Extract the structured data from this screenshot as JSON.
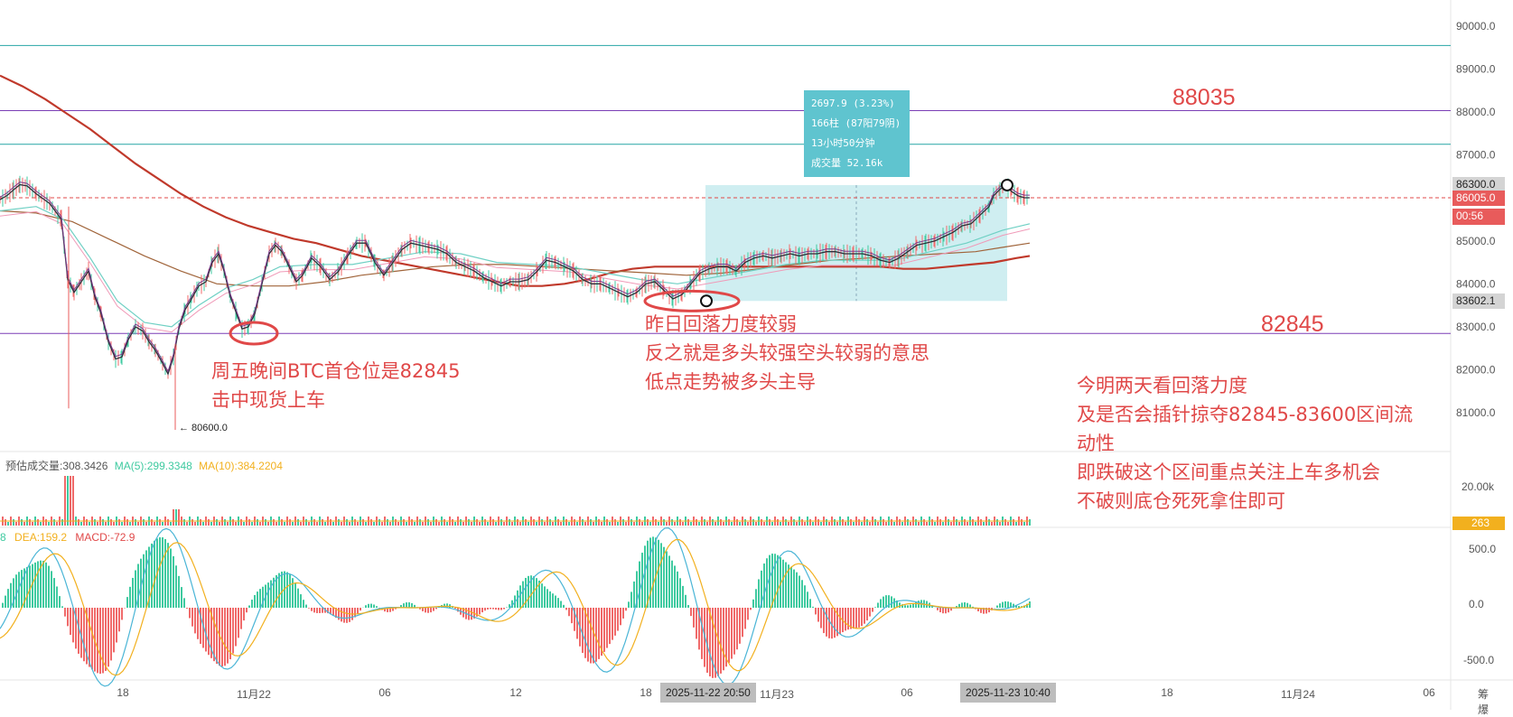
{
  "chart_data": {
    "type": "line",
    "price_axis": {
      "ticks": [
        "90000.0",
        "89000.0",
        "88000.0",
        "87000.0",
        "86000.0",
        "85000.0",
        "84000.0",
        "83000.0",
        "82000.0",
        "81000.0"
      ],
      "ylim": [
        80200,
        90600
      ]
    },
    "volume_axis": {
      "ticks": [
        "20.00k"
      ]
    },
    "macd_axis": {
      "ticks": [
        "500.0",
        "0.0",
        "-500.0"
      ]
    },
    "x_ticks": [
      "18",
      "11月22",
      "06",
      "12",
      "18",
      "11月23",
      "06",
      "18",
      "11月24",
      "06"
    ],
    "x_highlights": [
      "2025-11-22 20:50",
      "2025-11-23 10:40"
    ],
    "axis_corner": "筹 爆",
    "horizontal_levels": [
      {
        "price": 89550,
        "color": "#26a6a6",
        "label": ""
      },
      {
        "price": 88035,
        "color": "#7b3fb5",
        "label": "88035"
      },
      {
        "price": 87250,
        "color": "#26a6a6",
        "label": ""
      },
      {
        "price": 86005,
        "color": "#e04848",
        "dashed": true,
        "label": ""
      },
      {
        "price": 82845,
        "color": "#7b3fb5",
        "label": "82845"
      }
    ],
    "price_badges": [
      {
        "text": "86300.0",
        "bg": "#d4d4d4",
        "fg": "#222222"
      },
      {
        "text": "86005.0",
        "bg": "#e85b5b",
        "fg": "#ffffff"
      },
      {
        "text": "00:56",
        "bg": "#e85b5b",
        "fg": "#ffffff"
      },
      {
        "text": "83602.1",
        "bg": "#d4d4d4",
        "fg": "#222222"
      }
    ],
    "volume_badge": {
      "text": "263",
      "bg": "#f2b01e",
      "fg": "#ffffff"
    },
    "low_marker": "← 80600.0",
    "price_series": [
      [
        0,
        85960
      ],
      [
        8,
        86060
      ],
      [
        15,
        86190
      ],
      [
        22,
        86310
      ],
      [
        30,
        86280
      ],
      [
        40,
        86100
      ],
      [
        55,
        85870
      ],
      [
        68,
        85500
      ],
      [
        75,
        84100
      ],
      [
        82,
        83800
      ],
      [
        90,
        84050
      ],
      [
        98,
        84300
      ],
      [
        105,
        83700
      ],
      [
        112,
        83300
      ],
      [
        120,
        82650
      ],
      [
        128,
        82250
      ],
      [
        135,
        82300
      ],
      [
        142,
        82700
      ],
      [
        150,
        83000
      ],
      [
        158,
        82900
      ],
      [
        165,
        82650
      ],
      [
        172,
        82450
      ],
      [
        180,
        82150
      ],
      [
        186,
        81900
      ],
      [
        192,
        82300
      ],
      [
        198,
        82950
      ],
      [
        205,
        83400
      ],
      [
        212,
        83650
      ],
      [
        220,
        83950
      ],
      [
        228,
        84050
      ],
      [
        235,
        84500
      ],
      [
        242,
        84700
      ],
      [
        248,
        84300
      ],
      [
        255,
        83700
      ],
      [
        262,
        83300
      ],
      [
        268,
        82950
      ],
      [
        275,
        83000
      ],
      [
        282,
        83300
      ],
      [
        290,
        84000
      ],
      [
        298,
        84700
      ],
      [
        305,
        84900
      ],
      [
        312,
        84750
      ],
      [
        320,
        84400
      ],
      [
        328,
        84050
      ],
      [
        335,
        84200
      ],
      [
        345,
        84600
      ],
      [
        355,
        84400
      ],
      [
        365,
        84100
      ],
      [
        375,
        84300
      ],
      [
        385,
        84650
      ],
      [
        395,
        84950
      ],
      [
        405,
        84950
      ],
      [
        415,
        84500
      ],
      [
        425,
        84200
      ],
      [
        435,
        84500
      ],
      [
        445,
        84800
      ],
      [
        455,
        84950
      ],
      [
        465,
        84900
      ],
      [
        475,
        84850
      ],
      [
        485,
        84800
      ],
      [
        495,
        84700
      ],
      [
        505,
        84500
      ],
      [
        515,
        84400
      ],
      [
        525,
        84300
      ],
      [
        535,
        84150
      ],
      [
        545,
        84050
      ],
      [
        555,
        83950
      ],
      [
        565,
        84050
      ],
      [
        575,
        84050
      ],
      [
        585,
        84100
      ],
      [
        595,
        84300
      ],
      [
        605,
        84550
      ],
      [
        615,
        84500
      ],
      [
        625,
        84400
      ],
      [
        635,
        84300
      ],
      [
        645,
        84100
      ],
      [
        655,
        84000
      ],
      [
        665,
        84000
      ],
      [
        675,
        83900
      ],
      [
        685,
        83800
      ],
      [
        695,
        83700
      ],
      [
        705,
        83800
      ],
      [
        715,
        84000
      ],
      [
        725,
        84050
      ],
      [
        735,
        83850
      ],
      [
        745,
        83650
      ],
      [
        755,
        83750
      ],
      [
        765,
        84000
      ],
      [
        775,
        84250
      ],
      [
        785,
        84350
      ],
      [
        795,
        84400
      ],
      [
        805,
        84400
      ],
      [
        815,
        84300
      ],
      [
        825,
        84500
      ],
      [
        835,
        84600
      ],
      [
        845,
        84650
      ],
      [
        855,
        84600
      ],
      [
        865,
        84650
      ],
      [
        875,
        84700
      ],
      [
        885,
        84650
      ],
      [
        895,
        84700
      ],
      [
        905,
        84700
      ],
      [
        915,
        84750
      ],
      [
        925,
        84750
      ],
      [
        935,
        84700
      ],
      [
        945,
        84700
      ],
      [
        955,
        84700
      ],
      [
        965,
        84650
      ],
      [
        975,
        84550
      ],
      [
        985,
        84500
      ],
      [
        995,
        84600
      ],
      [
        1005,
        84750
      ],
      [
        1015,
        84900
      ],
      [
        1025,
        84950
      ],
      [
        1035,
        85000
      ],
      [
        1045,
        85100
      ],
      [
        1055,
        85200
      ],
      [
        1065,
        85350
      ],
      [
        1075,
        85400
      ],
      [
        1085,
        85600
      ],
      [
        1095,
        85800
      ],
      [
        1100,
        86050
      ],
      [
        1107,
        86200
      ],
      [
        1113,
        86300
      ],
      [
        1120,
        86150
      ],
      [
        1127,
        86050
      ],
      [
        1134,
        86005
      ],
      [
        1140,
        86005
      ]
    ],
    "ma_slow": [
      [
        0,
        88850
      ],
      [
        25,
        88600
      ],
      [
        50,
        88300
      ],
      [
        75,
        87950
      ],
      [
        100,
        87600
      ],
      [
        125,
        87200
      ],
      [
        150,
        86800
      ],
      [
        175,
        86450
      ],
      [
        200,
        86100
      ],
      [
        225,
        85800
      ],
      [
        250,
        85550
      ],
      [
        275,
        85350
      ],
      [
        300,
        85200
      ],
      [
        325,
        85050
      ],
      [
        350,
        84950
      ],
      [
        375,
        84800
      ],
      [
        400,
        84650
      ],
      [
        425,
        84550
      ],
      [
        450,
        84450
      ],
      [
        475,
        84350
      ],
      [
        500,
        84250
      ],
      [
        525,
        84150
      ],
      [
        550,
        84050
      ],
      [
        575,
        83950
      ],
      [
        600,
        83950
      ],
      [
        625,
        84000
      ],
      [
        650,
        84100
      ],
      [
        675,
        84250
      ],
      [
        700,
        84350
      ],
      [
        725,
        84400
      ],
      [
        750,
        84400
      ],
      [
        775,
        84400
      ],
      [
        800,
        84400
      ],
      [
        825,
        84400
      ],
      [
        850,
        84400
      ],
      [
        875,
        84400
      ],
      [
        900,
        84400
      ],
      [
        925,
        84400
      ],
      [
        950,
        84400
      ],
      [
        975,
        84400
      ],
      [
        1000,
        84350
      ],
      [
        1025,
        84350
      ],
      [
        1050,
        84400
      ],
      [
        1075,
        84450
      ],
      [
        1100,
        84500
      ],
      [
        1125,
        84600
      ],
      [
        1140,
        84650
      ]
    ],
    "ma_mid": [
      [
        0,
        85700
      ],
      [
        40,
        85650
      ],
      [
        80,
        85450
      ],
      [
        120,
        85050
      ],
      [
        160,
        84650
      ],
      [
        200,
        84300
      ],
      [
        240,
        84000
      ],
      [
        280,
        83950
      ],
      [
        320,
        83950
      ],
      [
        360,
        84050
      ],
      [
        400,
        84200
      ],
      [
        440,
        84300
      ],
      [
        480,
        84400
      ],
      [
        520,
        84450
      ],
      [
        560,
        84450
      ],
      [
        600,
        84400
      ],
      [
        640,
        84350
      ],
      [
        680,
        84300
      ],
      [
        720,
        84250
      ],
      [
        760,
        84200
      ],
      [
        800,
        84250
      ],
      [
        840,
        84350
      ],
      [
        880,
        84450
      ],
      [
        920,
        84550
      ],
      [
        960,
        84600
      ],
      [
        1000,
        84650
      ],
      [
        1040,
        84700
      ],
      [
        1080,
        84750
      ],
      [
        1110,
        84850
      ],
      [
        1140,
        84950
      ]
    ],
    "ma_fast": [
      [
        0,
        85700
      ],
      [
        40,
        85800
      ],
      [
        70,
        85500
      ],
      [
        100,
        84600
      ],
      [
        130,
        83600
      ],
      [
        160,
        83100
      ],
      [
        190,
        83000
      ],
      [
        220,
        83500
      ],
      [
        250,
        83900
      ],
      [
        280,
        84100
      ],
      [
        310,
        84400
      ],
      [
        350,
        84450
      ],
      [
        390,
        84450
      ],
      [
        430,
        84600
      ],
      [
        470,
        84750
      ],
      [
        510,
        84700
      ],
      [
        550,
        84500
      ],
      [
        590,
        84450
      ],
      [
        630,
        84400
      ],
      [
        670,
        84250
      ],
      [
        710,
        84100
      ],
      [
        750,
        84000
      ],
      [
        790,
        84150
      ],
      [
        830,
        84300
      ],
      [
        870,
        84450
      ],
      [
        910,
        84550
      ],
      [
        950,
        84550
      ],
      [
        990,
        84550
      ],
      [
        1030,
        84750
      ],
      [
        1070,
        84950
      ],
      [
        1110,
        85250
      ],
      [
        1140,
        85400
      ]
    ],
    "box": {
      "x0": 781,
      "x1": 1115,
      "p_top": 86300,
      "p_bottom": 83602
    },
    "volume": {
      "legend_prefix": "预估成交量:308.3426",
      "ma5": "MA(5):299.3348",
      "ma10": "MA(10):384.2204"
    },
    "macd": {
      "legend_prefix": "8",
      "dea": "DEA:159.2",
      "macd": "MACD:-72.9"
    }
  },
  "measurement": {
    "change": "2697.9 (3.23%)",
    "bars": "166柱 (87阳79阴)",
    "duration": "13小时50分钟",
    "volume": "成交量 52.16k"
  },
  "annotations": {
    "note1_line1": "周五晚间BTC首仓位是82845",
    "note1_line2": "击中现货上车",
    "note2_line1": "昨日回落力度较弱",
    "note2_line2": "反之就是多头较强空头较弱的意思",
    "note2_line3": "低点走势被多头主导",
    "note3_line1": "今明两天看回落力度",
    "note3_line2": "及是否会插针掠夺82845-83600区间流",
    "note3_line3": "动性",
    "note3_line4": "即跌破这个区间重点关注上车多机会",
    "note3_line5": "不破则底仓死死拿住即可"
  },
  "colors": {
    "accent_red": "#e04848",
    "teal": "#26a6a6",
    "purple": "#7b3fb5",
    "macd_up": "#3fcaa0",
    "macd_down": "#f06a6a",
    "box": "#bfe8ec"
  }
}
